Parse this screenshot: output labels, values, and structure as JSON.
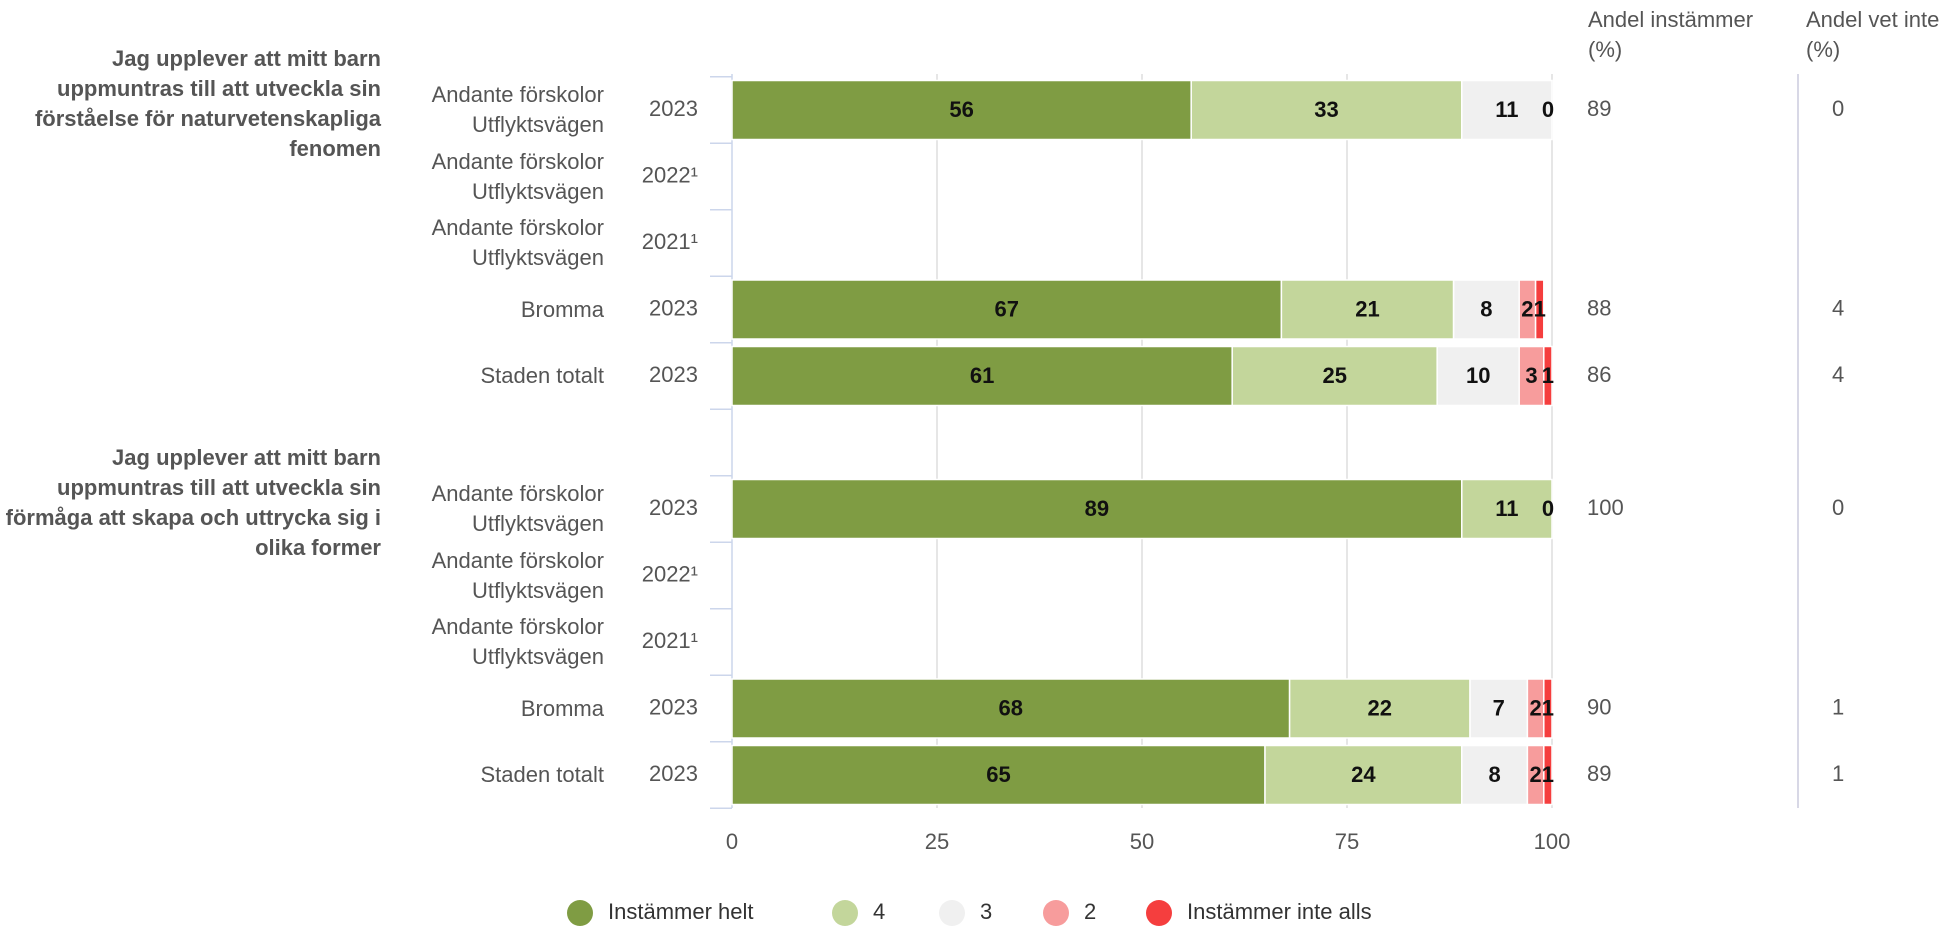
{
  "chart_data": {
    "type": "bar",
    "orientation": "horizontal",
    "stacked": true,
    "groups": [
      {
        "title": "Jag upplever att mitt barn uppmuntras till att utveckla sin förståelse för naturvetenskapliga fenomen",
        "rows": [
          {
            "name": "Andante förskolor Utflyktsvägen",
            "year": "2023"
          },
          {
            "name": "Andante förskolor Utflyktsvägen",
            "year": "2022¹"
          },
          {
            "name": "Andante förskolor Utflyktsvägen",
            "year": "2021¹"
          },
          {
            "name": "Bromma",
            "year": "2023"
          },
          {
            "name": "Staden totalt",
            "year": "2023"
          }
        ]
      },
      {
        "title": "Jag upplever att mitt barn uppmuntras till att utveckla sin förmåga att skapa och uttrycka sig i olika former",
        "rows": [
          {
            "name": "Andante förskolor Utflyktsvägen",
            "year": "2023"
          },
          {
            "name": "Andante förskolor Utflyktsvägen",
            "year": "2022¹"
          },
          {
            "name": "Andante förskolor Utflyktsvägen",
            "year": "2021¹"
          },
          {
            "name": "Bromma",
            "year": "2023"
          },
          {
            "name": "Staden totalt",
            "year": "2023"
          }
        ]
      }
    ],
    "series": [
      {
        "name": "Instämmer helt",
        "color": "#7f9c43",
        "values": [
          56,
          null,
          null,
          67,
          61,
          89,
          null,
          null,
          68,
          65
        ]
      },
      {
        "name": "4",
        "color": "#c3d69b",
        "values": [
          33,
          null,
          null,
          21,
          25,
          11,
          null,
          null,
          22,
          24
        ]
      },
      {
        "name": "3",
        "color": "#f0f0f0",
        "values": [
          11,
          null,
          null,
          8,
          10,
          0,
          null,
          null,
          7,
          8
        ]
      },
      {
        "name": "2",
        "color": "#f79c9c",
        "values": [
          0,
          null,
          null,
          2,
          3,
          null,
          null,
          null,
          2,
          2
        ]
      },
      {
        "name": "Instämmer inte alls",
        "color": "#f53e3e",
        "values": [
          null,
          null,
          null,
          1,
          1,
          null,
          null,
          null,
          1,
          1
        ]
      }
    ],
    "columns": [
      {
        "title": "Andel instämmer (%)",
        "values": [
          89,
          null,
          null,
          88,
          86,
          100,
          null,
          null,
          90,
          89
        ]
      },
      {
        "title": "Andel vet inte (%)",
        "values": [
          0,
          null,
          null,
          4,
          4,
          0,
          null,
          null,
          1,
          1
        ]
      }
    ],
    "xlim": [
      0,
      100
    ],
    "xticks": [
      0,
      25,
      50,
      75,
      100
    ],
    "grid": true,
    "legend": "bottom"
  }
}
